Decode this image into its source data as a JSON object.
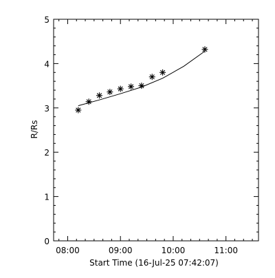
{
  "chart_data": {
    "type": "scatter",
    "xlabel": "Start Time (16-Jul-25 07:42:07)",
    "ylabel": "R/Rs",
    "x_unit": "time",
    "xlim": [
      "07:44",
      "11:37"
    ],
    "ylim": [
      0,
      5
    ],
    "x_ticks": [
      "08:00",
      "09:00",
      "10:00",
      "11:00"
    ],
    "y_ticks": [
      "0",
      "1",
      "2",
      "3",
      "4",
      "5"
    ],
    "grid": false,
    "points": [
      {
        "time": "08:12",
        "r": 2.95
      },
      {
        "time": "08:24",
        "r": 3.14
      },
      {
        "time": "08:36",
        "r": 3.28
      },
      {
        "time": "08:48",
        "r": 3.36
      },
      {
        "time": "09:00",
        "r": 3.43
      },
      {
        "time": "09:12",
        "r": 3.48
      },
      {
        "time": "09:24",
        "r": 3.5
      },
      {
        "time": "09:36",
        "r": 3.7
      },
      {
        "time": "09:48",
        "r": 3.8
      },
      {
        "time": "10:36",
        "r": 4.32
      }
    ],
    "fit_line": [
      {
        "time": "08:12",
        "r": 3.05
      },
      {
        "time": "08:36",
        "r": 3.18
      },
      {
        "time": "09:00",
        "r": 3.32
      },
      {
        "time": "09:24",
        "r": 3.47
      },
      {
        "time": "09:48",
        "r": 3.67
      },
      {
        "time": "10:12",
        "r": 3.94
      },
      {
        "time": "10:36",
        "r": 4.28
      }
    ],
    "colors": {
      "axis": "#000000",
      "marker": "#000000",
      "line": "#000000",
      "background": "#ffffff"
    }
  }
}
